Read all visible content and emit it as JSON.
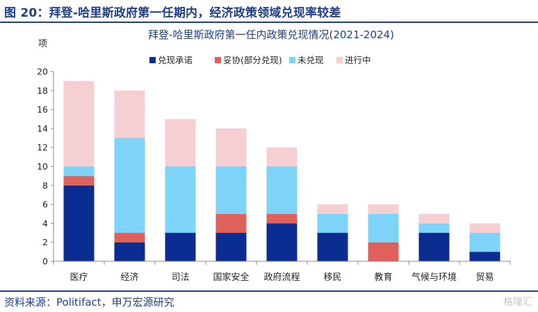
{
  "figure_title": "图 20：拜登-哈里斯政府第一任期内，经济政策领域兑现率较差",
  "source": "资料来源：Politifact，申万宏源研究",
  "watermark": "格隆汇",
  "chart_data": {
    "type": "bar",
    "stacked": true,
    "title": "拜登-哈里斯政府第一任内政策兑现情况(2021-2024)",
    "ylabel": "项",
    "xlabel": "",
    "ylim": [
      0,
      20
    ],
    "yticks": [
      "0",
      "2",
      "4",
      "6",
      "8",
      "10",
      "12",
      "14",
      "16",
      "18",
      "20"
    ],
    "categories": [
      "医疗",
      "经济",
      "司法",
      "国家安全",
      "政府流程",
      "移民",
      "教育",
      "气候与环境",
      "贸易"
    ],
    "legend_position": "top",
    "grid": false,
    "series": [
      {
        "name": "兑现承诺",
        "color": "#0b2d91",
        "values": [
          8,
          2,
          3,
          3,
          4,
          3,
          0,
          3,
          1
        ]
      },
      {
        "name": "妥协(部分兑现)",
        "color": "#e0605b",
        "values": [
          1,
          1,
          0,
          2,
          1,
          0,
          2,
          0,
          0
        ]
      },
      {
        "name": "未兑现",
        "color": "#7dd3f8",
        "values": [
          1,
          10,
          7,
          5,
          5,
          2,
          3,
          1,
          2
        ]
      },
      {
        "name": "进行中",
        "color": "#f5cfd1",
        "values": [
          9,
          5,
          5,
          4,
          2,
          1,
          1,
          1,
          1
        ]
      }
    ]
  }
}
